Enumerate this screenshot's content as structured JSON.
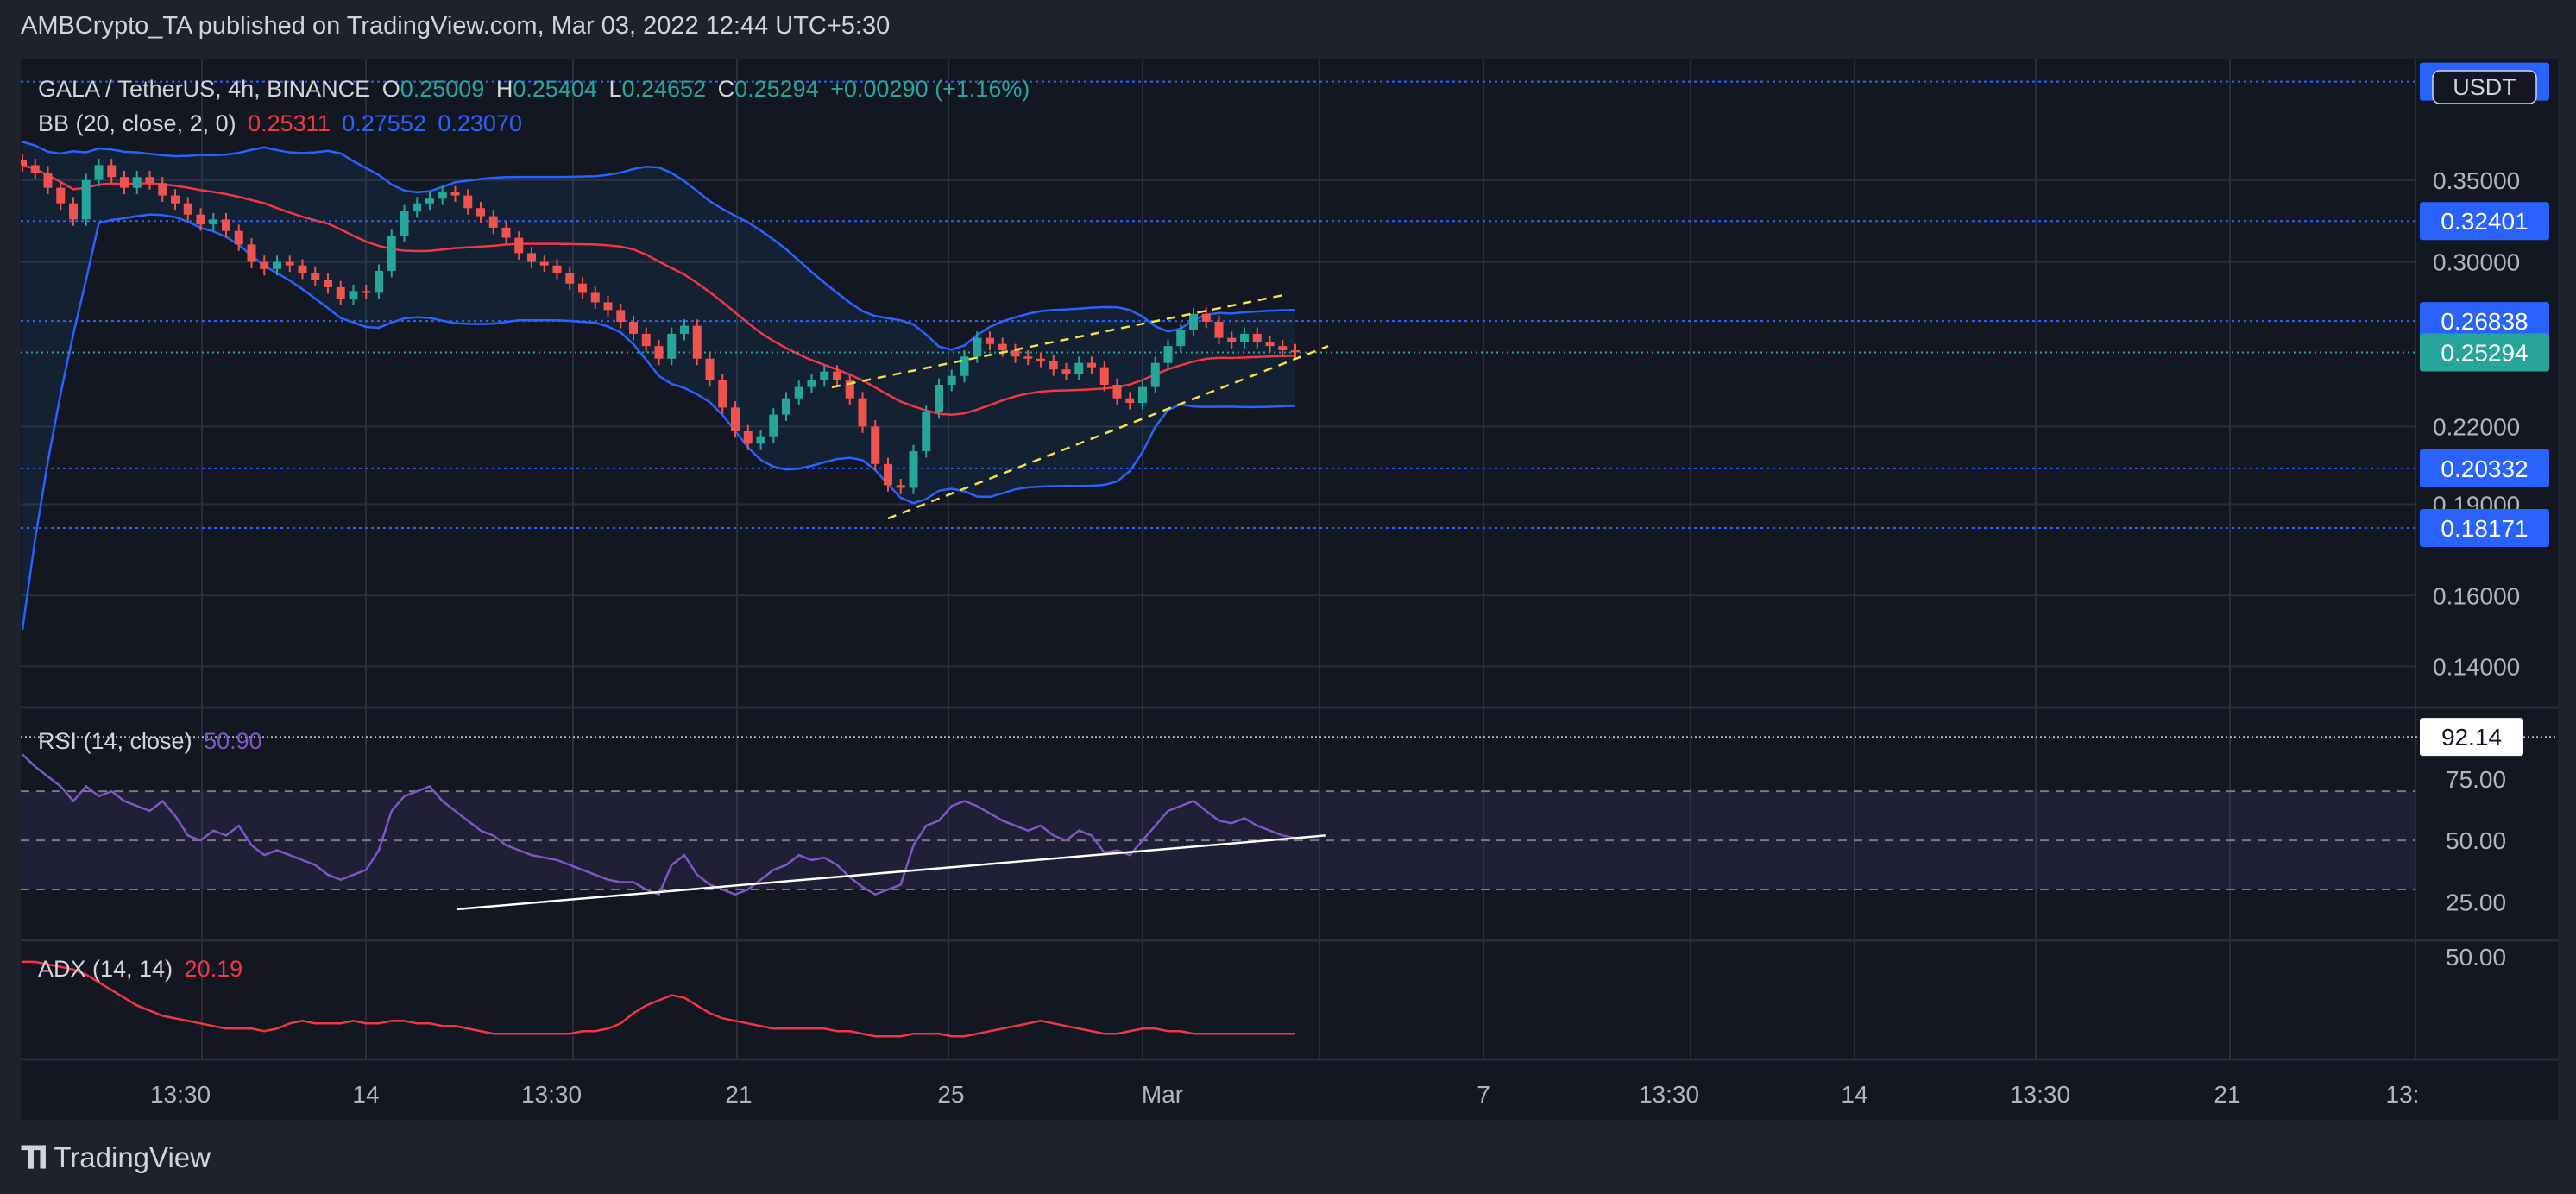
{
  "header": {
    "text": "AMBCrypto_TA published on TradingView.com, Mar 03, 2022 12:44 UTC+5:30"
  },
  "footer": {
    "brand": "TradingView",
    "logo_icon": "tradingview-logo-icon"
  },
  "colors": {
    "background": "#131722",
    "grid": "#2a2e39",
    "bull": "#26a69a",
    "bear": "#ef5350",
    "bb_basis": "#f23645",
    "bb_band": "#2962ff",
    "rsi": "#7e57c2",
    "adx": "#f23645",
    "channel": "#f5e342",
    "trendline": "#ffffff",
    "price_label": "#2962ff",
    "last_price": "#26a69a"
  },
  "legend": {
    "symbol": "GALA / TetherUS, 4h, BINANCE",
    "o_label": "O",
    "o": "0.25009",
    "h_label": "H",
    "h": "0.25404",
    "l_label": "L",
    "l": "0.24652",
    "c_label": "C",
    "c": "0.25294",
    "change": "+0.00290 (+1.16%)",
    "bb_label": "BB (20, close, 2, 0)",
    "bb_basis": "0.25311",
    "bb_upper": "0.27552",
    "bb_lower": "0.23070",
    "rsi_label": "RSI (14, close)",
    "rsi_value": "50.90",
    "adx_label": "ADX (14, 14)",
    "adx_value": "20.19"
  },
  "currency_badge": "USDT",
  "chart_data": [
    {
      "type": "candlestick",
      "title": "GALA / TetherUS, 4h, BINANCE",
      "x_ticks": [
        "13:30",
        "14",
        "13:30",
        "21",
        "25",
        "Mar",
        "7",
        "13:30",
        "14",
        "13:30",
        "21",
        "13:"
      ],
      "y_ticks": [
        "0.35000",
        "0.30000",
        "0.22000",
        "0.19000",
        "0.16000",
        "0.14000"
      ],
      "ylim": [
        0.13,
        0.44
      ],
      "y_scale": "log",
      "horizontal_levels": [
        "0.42139",
        "0.32401",
        "0.26838",
        "0.20332",
        "0.18171"
      ],
      "last_price": "0.25294",
      "close_path": [
        0.36,
        0.355,
        0.345,
        0.335,
        0.325,
        0.35,
        0.36,
        0.352,
        0.345,
        0.352,
        0.348,
        0.34,
        0.335,
        0.328,
        0.322,
        0.325,
        0.318,
        0.31,
        0.3,
        0.296,
        0.3,
        0.298,
        0.294,
        0.29,
        0.286,
        0.28,
        0.284,
        0.283,
        0.295,
        0.315,
        0.33,
        0.335,
        0.338,
        0.342,
        0.34,
        0.332,
        0.327,
        0.32,
        0.314,
        0.305,
        0.3,
        0.298,
        0.294,
        0.288,
        0.283,
        0.278,
        0.274,
        0.268,
        0.262,
        0.256,
        0.25,
        0.262,
        0.266,
        0.25,
        0.24,
        0.228,
        0.218,
        0.213,
        0.216,
        0.225,
        0.232,
        0.237,
        0.24,
        0.244,
        0.24,
        0.232,
        0.22,
        0.205,
        0.197,
        0.196,
        0.21,
        0.226,
        0.238,
        0.242,
        0.251,
        0.26,
        0.257,
        0.254,
        0.251,
        0.25,
        0.249,
        0.245,
        0.243,
        0.248,
        0.246,
        0.238,
        0.232,
        0.23,
        0.237,
        0.248,
        0.256,
        0.264,
        0.272,
        0.268,
        0.26,
        0.258,
        0.262,
        0.258,
        0.256,
        0.254,
        0.253
      ],
      "series": [
        {
          "name": "0.25311",
          "values_ref": "bb_basis"
        },
        {
          "name": "0.27552",
          "values_ref": "bb_upper"
        },
        {
          "name": "0.23070",
          "values_ref": "bb_lower"
        }
      ]
    },
    {
      "type": "line",
      "title": "RSI (14, close)",
      "y_ticks": [
        "75.00",
        "50.00",
        "25.00"
      ],
      "ylim": [
        10,
        95
      ],
      "band": [
        30,
        70
      ],
      "max_label": "92.14",
      "values": [
        85,
        80,
        76,
        72,
        66,
        72,
        68,
        70,
        66,
        64,
        62,
        66,
        60,
        52,
        50,
        54,
        52,
        56,
        48,
        44,
        46,
        44,
        42,
        40,
        36,
        34,
        36,
        38,
        46,
        62,
        68,
        70,
        72,
        66,
        62,
        58,
        54,
        52,
        48,
        46,
        44,
        43,
        42,
        40,
        38,
        36,
        34,
        33,
        33,
        30,
        28,
        40,
        44,
        36,
        32,
        30,
        28,
        30,
        34,
        38,
        40,
        44,
        42,
        43,
        40,
        35,
        31,
        28,
        30,
        32,
        48,
        56,
        58,
        64,
        66,
        64,
        61,
        58,
        56,
        54,
        56,
        52,
        50,
        54,
        52,
        45,
        46,
        44,
        50,
        56,
        62,
        64,
        66,
        62,
        58,
        57,
        59,
        56,
        54,
        52,
        51
      ],
      "trendline": {
        "from": [
          24,
          22
        ],
        "to": [
          101,
          52
        ]
      }
    },
    {
      "type": "line",
      "title": "ADX (14, 14)",
      "y_ticks": [
        "50.00"
      ],
      "ylim": [
        10,
        55
      ],
      "values": [
        48,
        48,
        47,
        46,
        45,
        43,
        40,
        37,
        34,
        31,
        29,
        27,
        26,
        25,
        24,
        23,
        22,
        22,
        22,
        21,
        22,
        24,
        25,
        24,
        24,
        24,
        25,
        24,
        24,
        25,
        25,
        24,
        24,
        23,
        23,
        22,
        21,
        20,
        20,
        20,
        20,
        20,
        20,
        20,
        21,
        21,
        22,
        24,
        28,
        31,
        33,
        35,
        34,
        31,
        28,
        26,
        25,
        24,
        23,
        22,
        22,
        22,
        22,
        22,
        21,
        21,
        20,
        19,
        19,
        19,
        20,
        20,
        20,
        19,
        19,
        20,
        21,
        22,
        23,
        24,
        25,
        24,
        23,
        22,
        21,
        20,
        20,
        21,
        22,
        22,
        21,
        21,
        20,
        20,
        20,
        20,
        20,
        20,
        20,
        20,
        20
      ]
    }
  ]
}
